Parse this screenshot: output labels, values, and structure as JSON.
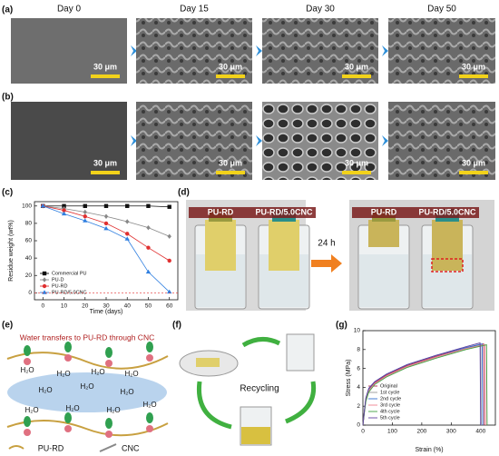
{
  "panels": {
    "labels": [
      "(a)",
      "(b)",
      "(c)",
      "(d)",
      "(e)",
      "(f)",
      "(g)"
    ],
    "days": [
      "Day 0",
      "Day 15",
      "Day 30",
      "Day 50"
    ],
    "scale_bar": "30 μm",
    "d": {
      "samples": [
        "PU-RD",
        "PU-RD/5.0CNC"
      ],
      "time": "24 h"
    },
    "e": {
      "title": "Water transfers to PU-RD through CNC",
      "molecule": "H₂O",
      "legend": [
        "PU-RD",
        "CNC"
      ]
    },
    "f": {
      "label": "Recycling"
    }
  },
  "chart_data": [
    {
      "type": "line",
      "xlabel": "Time (days)",
      "ylabel": "Residue weight (wt%)",
      "x": [
        0,
        10,
        20,
        30,
        40,
        50,
        60
      ],
      "xlim": [
        -4,
        64
      ],
      "xticks": [
        0,
        10,
        20,
        30,
        40,
        50,
        60
      ],
      "ylim": [
        -8,
        105
      ],
      "yticks": [
        0,
        20,
        40,
        60,
        80,
        100
      ],
      "legend": "lower left",
      "series": [
        {
          "name": "Commercial PU",
          "color": "#111111",
          "marker": "square",
          "values": [
            100,
            100,
            100,
            100,
            100,
            100,
            99
          ]
        },
        {
          "name": "PU-D",
          "color": "#888888",
          "marker": "diamond",
          "values": [
            100,
            97,
            93,
            88,
            82,
            75,
            65
          ]
        },
        {
          "name": "PU-RD",
          "color": "#e03030",
          "marker": "circle",
          "values": [
            100,
            95,
            88,
            80,
            68,
            52,
            37
          ]
        },
        {
          "name": "PU-RD/5.0CNC",
          "color": "#2f7fe0",
          "marker": "triangle",
          "values": [
            100,
            91,
            83,
            74,
            62,
            24,
            1
          ]
        }
      ]
    },
    {
      "type": "line",
      "xlabel": "Strain (%)",
      "ylabel": "Stress (MPa)",
      "xlim": [
        0,
        450
      ],
      "xticks": [
        0,
        100,
        200,
        300,
        400
      ],
      "ylim": [
        0,
        10
      ],
      "yticks": [
        0,
        2,
        4,
        6,
        8,
        10
      ],
      "legend": "lower left",
      "series": [
        {
          "name": "Original",
          "color": "#b03050",
          "x": [
            0,
            5,
            10,
            20,
            40,
            80,
            150,
            250,
            350,
            410,
            412
          ],
          "values": [
            0,
            1.5,
            2.8,
            3.8,
            4.5,
            5.3,
            6.3,
            7.3,
            8.2,
            8.6,
            0
          ]
        },
        {
          "name": "1st cycle",
          "color": "#999999",
          "x": [
            0,
            5,
            10,
            20,
            40,
            80,
            150,
            250,
            350,
            400,
            402
          ],
          "values": [
            0,
            1.4,
            2.7,
            3.7,
            4.4,
            5.2,
            6.2,
            7.2,
            8.1,
            8.5,
            0
          ]
        },
        {
          "name": "2nd cycle",
          "color": "#3070d0",
          "x": [
            0,
            5,
            10,
            20,
            40,
            80,
            150,
            250,
            350,
            405,
            407
          ],
          "values": [
            0,
            1.5,
            2.8,
            3.9,
            4.6,
            5.4,
            6.4,
            7.4,
            8.2,
            8.6,
            0
          ]
        },
        {
          "name": "3rd cycle",
          "color": "#f08090",
          "x": [
            0,
            5,
            10,
            20,
            40,
            80,
            150,
            250,
            350,
            415,
            417
          ],
          "values": [
            0,
            1.4,
            2.6,
            3.6,
            4.4,
            5.2,
            6.2,
            7.2,
            8.1,
            8.5,
            0
          ]
        },
        {
          "name": "4th cycle",
          "color": "#40a040",
          "x": [
            0,
            5,
            10,
            20,
            40,
            80,
            150,
            250,
            350,
            420,
            422
          ],
          "values": [
            0,
            1.3,
            2.5,
            3.5,
            4.3,
            5.1,
            6.1,
            7.1,
            8.0,
            8.5,
            0
          ]
        },
        {
          "name": "5th cycle",
          "color": "#6040a0",
          "x": [
            0,
            5,
            10,
            20,
            40,
            80,
            150,
            250,
            350,
            398,
            400
          ],
          "values": [
            0,
            1.5,
            2.9,
            3.9,
            4.6,
            5.4,
            6.4,
            7.4,
            8.3,
            8.7,
            0
          ]
        }
      ]
    }
  ]
}
